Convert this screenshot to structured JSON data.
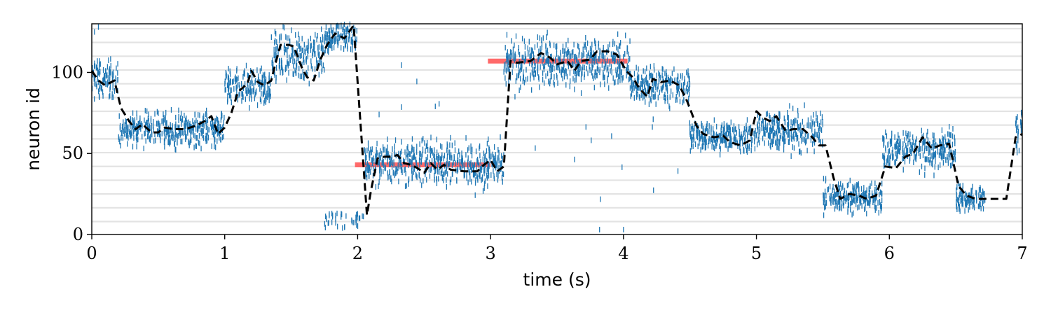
{
  "chart_data": {
    "type": "raster",
    "title": "",
    "xlabel": "time (s)",
    "ylabel": "neuron id",
    "xlim": [
      0,
      7
    ],
    "ylim": [
      0,
      130
    ],
    "xticks": [
      "0",
      "1",
      "2",
      "3",
      "4",
      "5",
      "6",
      "7"
    ],
    "yticks": [
      "0",
      "50",
      "100"
    ],
    "ytick_values": [
      0,
      50,
      100
    ],
    "grid": "horizontal",
    "legend": "none",
    "colors": {
      "spikes": "#1f77b4",
      "decoded": "#000000",
      "target": "#ff5a5a",
      "grid": "#e3e3e3"
    },
    "spike_segments": [
      {
        "t_start": 0.0,
        "t_end": 0.2,
        "center": 96,
        "spread": 10
      },
      {
        "t_start": 0.2,
        "t_end": 1.0,
        "center": 65,
        "spread": 9
      },
      {
        "t_start": 1.0,
        "t_end": 1.35,
        "center": 90,
        "spread": 10
      },
      {
        "t_start": 1.35,
        "t_end": 1.75,
        "center": 110,
        "spread": 15
      },
      {
        "t_start": 1.75,
        "t_end": 2.0,
        "center": 122,
        "spread": 8
      },
      {
        "t_start": 2.05,
        "t_end": 3.1,
        "center": 44,
        "spread": 12
      },
      {
        "t_start": 3.1,
        "t_end": 4.05,
        "center": 106,
        "spread": 13
      },
      {
        "t_start": 4.05,
        "t_end": 4.5,
        "center": 92,
        "spread": 10
      },
      {
        "t_start": 4.5,
        "t_end": 5.0,
        "center": 60,
        "spread": 8
      },
      {
        "t_start": 5.0,
        "t_end": 5.5,
        "center": 64,
        "spread": 11
      },
      {
        "t_start": 5.5,
        "t_end": 5.95,
        "center": 23,
        "spread": 8
      },
      {
        "t_start": 5.95,
        "t_end": 6.5,
        "center": 52,
        "spread": 10
      },
      {
        "t_start": 6.5,
        "t_end": 6.72,
        "center": 22,
        "spread": 7
      },
      {
        "t_start": 6.95,
        "t_end": 7.0,
        "center": 62,
        "spread": 10
      }
    ],
    "decoded_series": {
      "style": "dashed",
      "points": [
        [
          0.0,
          101
        ],
        [
          0.05,
          95
        ],
        [
          0.1,
          92
        ],
        [
          0.17,
          95
        ],
        [
          0.22,
          78
        ],
        [
          0.28,
          70
        ],
        [
          0.33,
          65
        ],
        [
          0.38,
          68
        ],
        [
          0.45,
          63
        ],
        [
          0.5,
          63
        ],
        [
          0.55,
          66
        ],
        [
          0.62,
          65
        ],
        [
          0.7,
          65
        ],
        [
          0.78,
          67
        ],
        [
          0.85,
          70
        ],
        [
          0.9,
          73
        ],
        [
          0.95,
          62
        ],
        [
          1.0,
          66
        ],
        [
          1.05,
          75
        ],
        [
          1.1,
          88
        ],
        [
          1.17,
          93
        ],
        [
          1.2,
          101
        ],
        [
          1.25,
          94
        ],
        [
          1.3,
          92
        ],
        [
          1.35,
          95
        ],
        [
          1.38,
          105
        ],
        [
          1.42,
          117
        ],
        [
          1.48,
          117
        ],
        [
          1.52,
          116
        ],
        [
          1.58,
          103
        ],
        [
          1.62,
          97
        ],
        [
          1.67,
          95
        ],
        [
          1.72,
          108
        ],
        [
          1.77,
          117
        ],
        [
          1.83,
          124
        ],
        [
          1.9,
          121
        ],
        [
          1.97,
          129
        ],
        [
          2.07,
          12
        ],
        [
          2.1,
          27
        ],
        [
          2.15,
          47
        ],
        [
          2.2,
          48
        ],
        [
          2.25,
          48
        ],
        [
          2.3,
          49
        ],
        [
          2.35,
          44
        ],
        [
          2.4,
          43
        ],
        [
          2.45,
          41
        ],
        [
          2.5,
          38
        ],
        [
          2.55,
          44
        ],
        [
          2.6,
          40
        ],
        [
          2.65,
          43
        ],
        [
          2.7,
          40
        ],
        [
          2.8,
          39
        ],
        [
          2.9,
          39
        ],
        [
          2.95,
          43
        ],
        [
          3.0,
          46
        ],
        [
          3.05,
          39
        ],
        [
          3.1,
          42
        ],
        [
          3.15,
          107
        ],
        [
          3.2,
          106
        ],
        [
          3.3,
          107
        ],
        [
          3.38,
          112
        ],
        [
          3.45,
          109
        ],
        [
          3.5,
          105
        ],
        [
          3.58,
          107
        ],
        [
          3.63,
          101
        ],
        [
          3.68,
          107
        ],
        [
          3.75,
          108
        ],
        [
          3.8,
          113
        ],
        [
          3.88,
          113
        ],
        [
          3.95,
          111
        ],
        [
          4.02,
          101
        ],
        [
          4.07,
          97
        ],
        [
          4.12,
          90
        ],
        [
          4.18,
          85
        ],
        [
          4.22,
          96
        ],
        [
          4.28,
          94
        ],
        [
          4.35,
          95
        ],
        [
          4.42,
          92
        ],
        [
          4.48,
          82
        ],
        [
          4.55,
          67
        ],
        [
          4.6,
          62
        ],
        [
          4.68,
          60
        ],
        [
          4.75,
          61
        ],
        [
          4.8,
          57
        ],
        [
          4.88,
          55
        ],
        [
          4.95,
          58
        ],
        [
          5.0,
          76
        ],
        [
          5.05,
          72
        ],
        [
          5.1,
          70
        ],
        [
          5.15,
          73
        ],
        [
          5.22,
          64
        ],
        [
          5.28,
          65
        ],
        [
          5.35,
          65
        ],
        [
          5.42,
          60
        ],
        [
          5.47,
          55
        ],
        [
          5.52,
          55
        ],
        [
          5.58,
          35
        ],
        [
          5.63,
          22
        ],
        [
          5.7,
          25
        ],
        [
          5.77,
          24
        ],
        [
          5.83,
          22
        ],
        [
          5.9,
          24
        ],
        [
          5.97,
          42
        ],
        [
          6.05,
          41
        ],
        [
          6.12,
          48
        ],
        [
          6.18,
          50
        ],
        [
          6.25,
          60
        ],
        [
          6.32,
          53
        ],
        [
          6.38,
          55
        ],
        [
          6.45,
          56
        ],
        [
          6.52,
          30
        ],
        [
          6.58,
          24
        ],
        [
          6.65,
          22
        ],
        [
          6.72,
          22
        ],
        [
          6.83,
          22
        ],
        [
          6.88,
          22
        ],
        [
          6.95,
          60
        ],
        [
          7.0,
          62
        ]
      ]
    },
    "target_segments": [
      {
        "t_start": 1.98,
        "t_end": 3.0,
        "value": 43
      },
      {
        "t_start": 2.98,
        "t_end": 4.03,
        "value": 107
      }
    ]
  }
}
